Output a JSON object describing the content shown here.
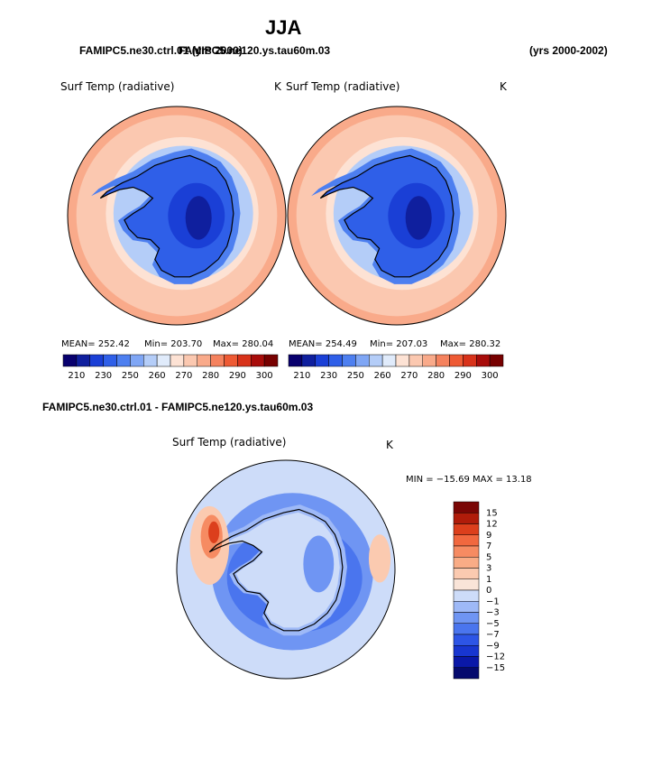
{
  "page": {
    "title": "JJA",
    "left_case": "FAMIPC5.ne30.ctrl.01 (yrs 2000)",
    "right_case": "FAMIPC5.ne120.ys.tau60m.03",
    "right_years": "(yrs 2000-2002)",
    "diff_title": "FAMIPC5.ne30.ctrl.01 - FAMIPC5.ne120.ys.tau60m.03"
  },
  "colors": {
    "abs_scale": [
      "#08006e",
      "#0f1f9e",
      "#1a3fd6",
      "#2f5fe8",
      "#4d7ff0",
      "#7fa6f5",
      "#b4cdf8",
      "#e0ebfb",
      "#fde2d4",
      "#fbc8b0",
      "#f9aa8a",
      "#f5825e",
      "#ee5a34",
      "#d8321a",
      "#a80c0a",
      "#770000"
    ],
    "diff_scale": [
      "#050a6e",
      "#0a18a8",
      "#1836d0",
      "#2d55e6",
      "#4a75ee",
      "#6f95f3",
      "#9eb9f7",
      "#cddcf9",
      "#f9e4d8",
      "#fbcab0",
      "#f9ac86",
      "#f68b62",
      "#f1683f",
      "#dc3f1c",
      "#b01c0a",
      "#7a0605"
    ],
    "coastline": "#000000"
  },
  "chart_data": [
    {
      "type": "heatmap",
      "projection": "south-polar-stereographic",
      "title": "Surf Temp (radiative)",
      "units": "K",
      "case": "FAMIPC5.ne30.ctrl.01 (yrs 2000)",
      "stats_text": {
        "mean": "MEAN= 252.42",
        "min": "Min= 203.70",
        "max": "Max= 280.04"
      },
      "mean": 252.42,
      "min": 203.7,
      "max": 280.04,
      "colorbar_ticks": [
        "210",
        "230",
        "250",
        "260",
        "270",
        "280",
        "290",
        "300"
      ],
      "levels": [
        210,
        220,
        230,
        240,
        250,
        255,
        260,
        265,
        270,
        275,
        280,
        285,
        290,
        295,
        300
      ],
      "region_values": {
        "interior_min": 210,
        "plateau": 225,
        "coast": 240,
        "sea_ice": 255,
        "ice_edge": 265,
        "ocean_mid": 272,
        "ocean_outer": 276
      }
    },
    {
      "type": "heatmap",
      "projection": "south-polar-stereographic",
      "title": "Surf Temp (radiative)",
      "units": "K",
      "case": "FAMIPC5.ne120.ys.tau60m.03 (yrs 2000-2002)",
      "stats_text": {
        "mean": "MEAN= 254.49",
        "min": "Min= 207.03",
        "max": "Max= 280.32"
      },
      "mean": 254.49,
      "min": 207.03,
      "max": 280.32,
      "colorbar_ticks": [
        "210",
        "230",
        "250",
        "260",
        "270",
        "280",
        "290",
        "300"
      ],
      "levels": [
        210,
        220,
        230,
        240,
        250,
        255,
        260,
        265,
        270,
        275,
        280,
        285,
        290,
        295,
        300
      ],
      "region_values": {
        "interior_min": 215,
        "plateau": 228,
        "coast": 242,
        "sea_ice": 256,
        "ice_edge": 266,
        "ocean_mid": 272,
        "ocean_outer": 276
      }
    },
    {
      "type": "heatmap",
      "projection": "south-polar-stereographic",
      "title": "Surf Temp (radiative)",
      "units": "K",
      "case": "FAMIPC5.ne30.ctrl.01 - FAMIPC5.ne120.ys.tau60m.03",
      "stats_text": "MIN = −15.69 MAX =   13.18",
      "min": -15.69,
      "max": 13.18,
      "colorbar_ticks": [
        "15",
        "12",
        "9",
        "7",
        "5",
        "3",
        "1",
        "0",
        "−1",
        "−3",
        "−5",
        "−7",
        "−9",
        "−12",
        "−15"
      ],
      "levels": [
        -15,
        -12,
        -9,
        -7,
        -5,
        -3,
        -1,
        0,
        1,
        3,
        5,
        7,
        9,
        12,
        15
      ]
    }
  ]
}
